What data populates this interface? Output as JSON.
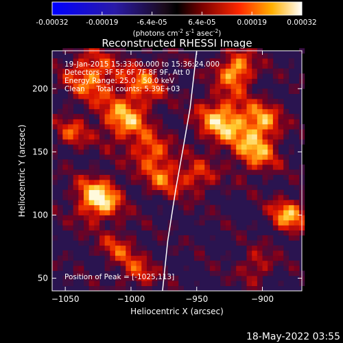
{
  "chart_data": {
    "type": "heatmap",
    "title": "Reconstructed RHESSI Image",
    "xlabel": "Heliocentric X (arcsec)",
    "ylabel": "Heliocentric Y (arcsec)",
    "xlim": [
      -1060,
      -870
    ],
    "ylim": [
      40,
      230
    ],
    "x_ticks": [
      -1050,
      -1000,
      -950,
      -900
    ],
    "y_ticks": [
      50,
      100,
      150,
      200
    ],
    "colorbar": {
      "range": [
        -0.00032,
        0.00032
      ],
      "ticks": [
        "-0.00032",
        "-0.00019",
        "-6.4e-05",
        "6.4e-05",
        "0.00019",
        "0.00032"
      ],
      "unit_label": "(photons cm",
      "unit_sup1": "-2",
      "unit_mid": " s",
      "unit_sup2": "-1",
      "unit_end": " asec",
      "unit_sup3": "-2",
      "unit_close": ")"
    },
    "annotations": [
      "19-Jan-2015 15:33:00.000 to 15:36:24.000",
      "Detectors: 3F 5F 6F 7F 8F 9F, Att 0",
      "Energy Range: 25.0 - 50.0 keV",
      "Clean     Total counts: 5.39E+03"
    ],
    "peak_label": "Position of Peak = [-1025,113]",
    "peak": [
      -1025,
      113
    ],
    "limb": [
      [
        -976,
        40
      ],
      [
        -972,
        80
      ],
      [
        -966,
        120
      ],
      [
        -960,
        155
      ],
      [
        -955,
        185
      ],
      [
        -950,
        230
      ]
    ],
    "hotspots": [
      {
        "x": -1025,
        "y": 113,
        "s": 12,
        "a": 1.0
      },
      {
        "x": -1030,
        "y": 210,
        "s": 14,
        "a": 0.7
      },
      {
        "x": -1005,
        "y": 175,
        "s": 13,
        "a": 0.75
      },
      {
        "x": -990,
        "y": 205,
        "s": 12,
        "a": 0.55
      },
      {
        "x": -985,
        "y": 150,
        "s": 10,
        "a": 0.6
      },
      {
        "x": -975,
        "y": 130,
        "s": 10,
        "a": 0.55
      },
      {
        "x": -920,
        "y": 215,
        "s": 10,
        "a": 0.85
      },
      {
        "x": -930,
        "y": 175,
        "s": 14,
        "a": 0.85
      },
      {
        "x": -905,
        "y": 150,
        "s": 12,
        "a": 0.7
      },
      {
        "x": -900,
        "y": 175,
        "s": 10,
        "a": 0.65
      },
      {
        "x": -950,
        "y": 130,
        "s": 10,
        "a": 0.5
      },
      {
        "x": -880,
        "y": 100,
        "s": 10,
        "a": 0.75
      },
      {
        "x": -1010,
        "y": 75,
        "s": 10,
        "a": 0.45
      },
      {
        "x": -1045,
        "y": 165,
        "s": 9,
        "a": 0.5
      },
      {
        "x": -995,
        "y": 55,
        "s": 10,
        "a": 0.45
      },
      {
        "x": -905,
        "y": 60,
        "s": 9,
        "a": 0.45
      }
    ]
  },
  "footer_timestamp": "18-May-2022 03:55"
}
